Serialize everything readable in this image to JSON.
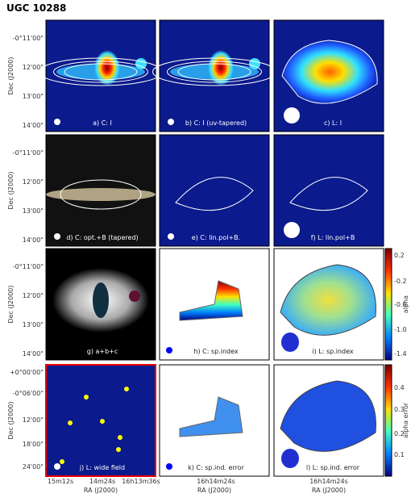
{
  "title": "UGC 10288",
  "panels": [
    {
      "label": "a) C: I"
    },
    {
      "label": "b) C: I (uv-tapered)"
    },
    {
      "label": "c) L: I"
    },
    {
      "label": "d) C: opt.+B (tapered)"
    },
    {
      "label": "e) C: lin.pol+B."
    },
    {
      "label": "f) L: lin.pol+B"
    },
    {
      "label": "g)  a+b+c"
    },
    {
      "label": "h) C: sp.index"
    },
    {
      "label": "i) L: sp.index"
    },
    {
      "label": "j) L: wide field"
    },
    {
      "label": "k) C: sp.ind. error"
    },
    {
      "label": "l) L: sp.ind. error"
    }
  ],
  "y_axis": {
    "label": "Dec (J2000)",
    "ticks_top": [
      "-0°11'00\"",
      "12'00\"",
      "13'00\"",
      "14'00\""
    ],
    "ticks_bottom": [
      "+0°00'00\"",
      "-0°06'00\"",
      "12'00\"",
      "18'00\"",
      "24'00\""
    ]
  },
  "x_axis": {
    "label": "RA (J2000)",
    "ticks": [
      [
        "15m12s",
        "14m24s",
        "16h13m36s"
      ],
      [
        "16h14m24s"
      ],
      [
        "16h14m24s"
      ]
    ]
  },
  "colorbars": [
    {
      "label": "alpha",
      "ticks": [
        "0.2",
        "-0.2",
        "-0.6",
        "-1.0",
        "-1.4"
      ]
    },
    {
      "label": "alpha error",
      "ticks": [
        "0.4",
        "0.3",
        "0.2",
        "0.1"
      ]
    }
  ]
}
